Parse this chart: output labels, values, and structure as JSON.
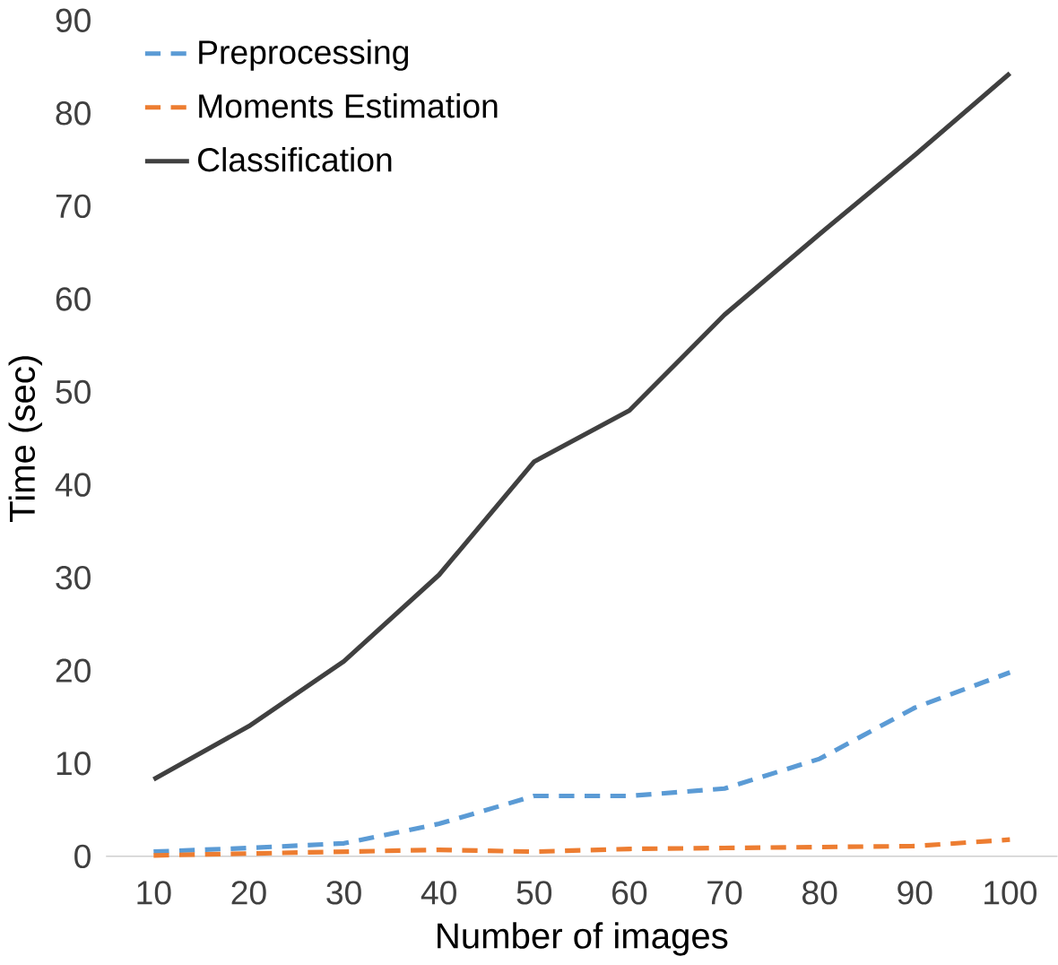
{
  "chart_data": {
    "type": "line",
    "xlabel": "Number of images",
    "ylabel": "Time (sec)",
    "categories": [
      "10",
      "20",
      "30",
      "40",
      "50",
      "60",
      "70",
      "80",
      "90",
      "100"
    ],
    "ylim": [
      0,
      90
    ],
    "yticks": [
      0,
      10,
      20,
      30,
      40,
      50,
      60,
      70,
      80,
      90
    ],
    "legend": "top left",
    "marker": "none",
    "series": [
      {
        "name": "Preprocessing",
        "color": "#5b9bd5",
        "line_style": "dashed",
        "values": [
          0.5,
          0.9,
          1.4,
          3.5,
          6.5,
          6.5,
          7.3,
          10.5,
          16,
          19.8
        ]
      },
      {
        "name": "Moments Estimation",
        "color": "#ed7d31",
        "line_style": "dashed",
        "values": [
          0.1,
          0.3,
          0.5,
          0.7,
          0.5,
          0.8,
          0.9,
          1.0,
          1.1,
          1.8
        ]
      },
      {
        "name": "Classification",
        "color": "#404040",
        "line_style": "solid",
        "values": [
          8.3,
          14,
          21,
          30.3,
          42.5,
          48,
          58.3,
          67,
          75.5,
          84.3
        ]
      }
    ]
  }
}
